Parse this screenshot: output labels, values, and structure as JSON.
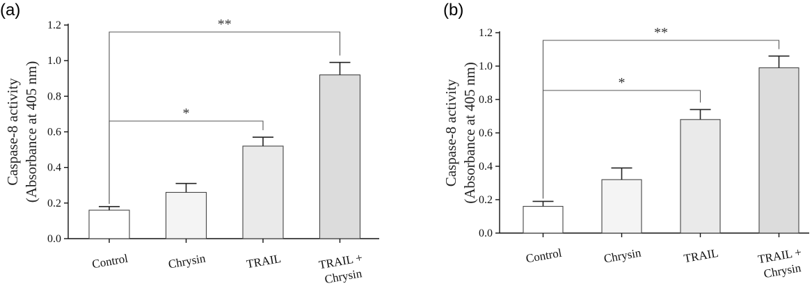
{
  "chart_data": [
    {
      "panel": "(a)",
      "type": "bar",
      "categories": [
        "Control",
        "Chrysin",
        "TRAIL",
        "TRAIL + Chrysin"
      ],
      "category_lines": [
        [
          "Control"
        ],
        [
          "Chrysin"
        ],
        [
          "TRAIL"
        ],
        [
          "TRAIL +",
          "Chrysin"
        ]
      ],
      "values": [
        0.16,
        0.26,
        0.52,
        0.92
      ],
      "errors": [
        0.02,
        0.05,
        0.05,
        0.07
      ],
      "bar_colors": [
        "#ffffff",
        "#f4f4f4",
        "#eaeaea",
        "#dcdcdc"
      ],
      "ylabel_lines": [
        "Caspase-8 activity",
        "(Absorbance at 405 nm)"
      ],
      "ylim": [
        0,
        1.2
      ],
      "yticks": [
        "0.0",
        "0.2",
        "0.4",
        "0.6",
        "0.8",
        "1.0",
        "1.2"
      ],
      "significance": [
        {
          "label": "*",
          "from": "Control",
          "to": "TRAIL"
        },
        {
          "label": "**",
          "from": "Control",
          "to": "TRAIL + Chrysin"
        }
      ]
    },
    {
      "panel": "(b)",
      "type": "bar",
      "categories": [
        "Control",
        "Chrysin",
        "TRAIL",
        "TRAIL + Chrysin"
      ],
      "category_lines": [
        [
          "Control"
        ],
        [
          "Chrysin"
        ],
        [
          "TRAIL"
        ],
        [
          "TRAIL +",
          "Chrysin"
        ]
      ],
      "values": [
        0.16,
        0.32,
        0.68,
        0.99
      ],
      "errors": [
        0.03,
        0.07,
        0.06,
        0.07
      ],
      "bar_colors": [
        "#ffffff",
        "#f4f4f4",
        "#eaeaea",
        "#dcdcdc"
      ],
      "ylabel_lines": [
        "Caspase-8 activity",
        "(Absorbance at 405 nm)"
      ],
      "ylim": [
        0,
        1.2
      ],
      "yticks": [
        "0.0",
        "0.2",
        "0.4",
        "0.6",
        "0.8",
        "1.0",
        "1.2"
      ],
      "significance": [
        {
          "label": "*",
          "from": "Control",
          "to": "TRAIL"
        },
        {
          "label": "**",
          "from": "Control",
          "to": "TRAIL + Chrysin"
        }
      ]
    }
  ]
}
